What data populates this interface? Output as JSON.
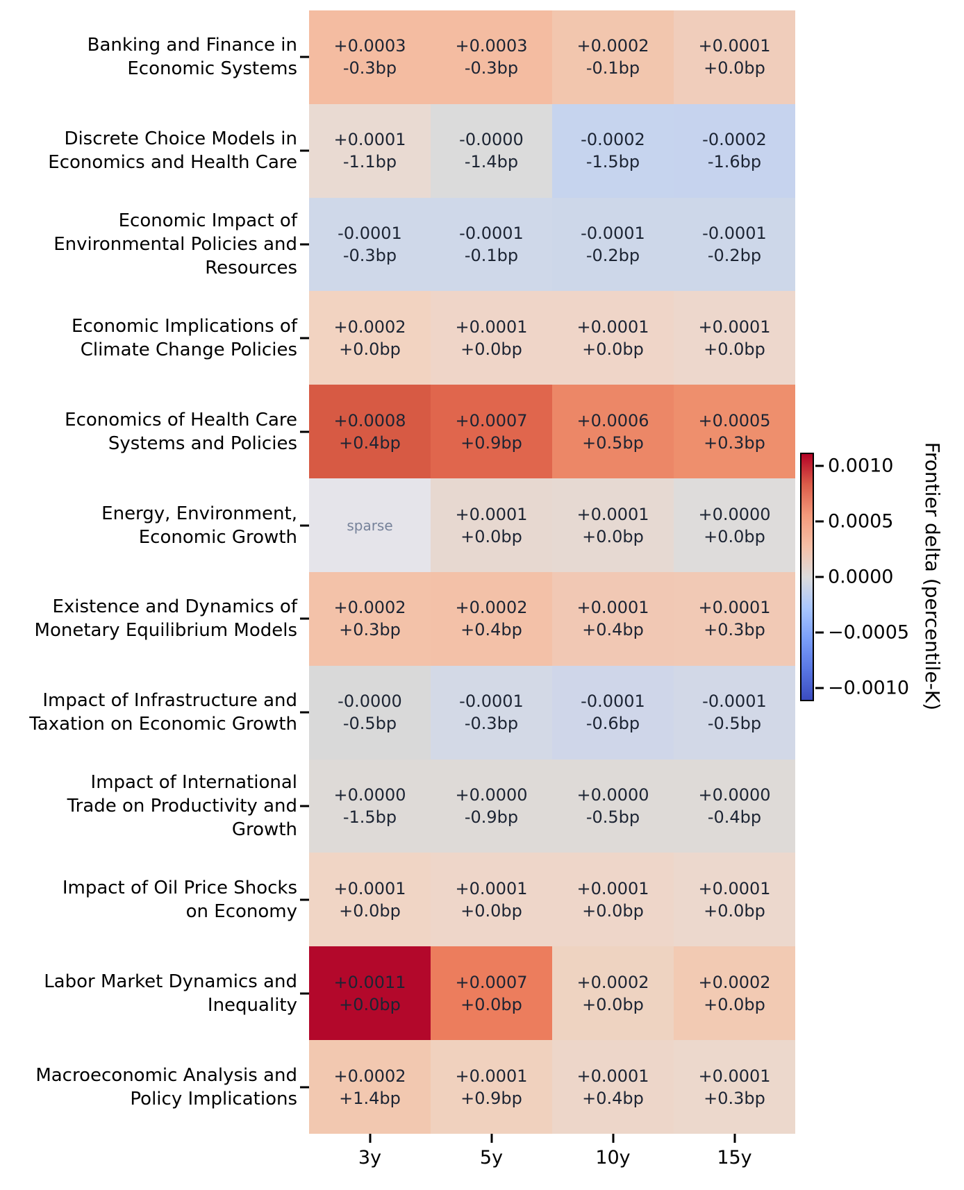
{
  "chart_data": {
    "type": "heatmap",
    "columns": [
      "3y",
      "5y",
      "10y",
      "15y"
    ],
    "sparse_label": "sparse",
    "cell_text_color": "#1c2433",
    "sparse_text_color": "#76829a",
    "rows": [
      {
        "label_lines": [
          "Banking and Finance in",
          "Economic Systems"
        ],
        "cells": [
          {
            "delta": "+0.0003",
            "bp": "-0.3bp",
            "color": "#f4bca1"
          },
          {
            "delta": "+0.0003",
            "bp": "-0.3bp",
            "color": "#f4bca1"
          },
          {
            "delta": "+0.0002",
            "bp": "-0.1bp",
            "color": "#f2c6ae"
          },
          {
            "delta": "+0.0001",
            "bp": "+0.0bp",
            "color": "#f0cdbb"
          }
        ]
      },
      {
        "label_lines": [
          "Discrete Choice Models in",
          "Economics and Health Care"
        ],
        "cells": [
          {
            "delta": "+0.0001",
            "bp": "-1.1bp",
            "color": "#e9dad2"
          },
          {
            "delta": "-0.0000",
            "bp": "-1.4bp",
            "color": "#dbdbdb"
          },
          {
            "delta": "-0.0002",
            "bp": "-1.5bp",
            "color": "#c6d4ee"
          },
          {
            "delta": "-0.0002",
            "bp": "-1.6bp",
            "color": "#c6d3ee"
          }
        ]
      },
      {
        "label_lines": [
          "Economic Impact of",
          "Environmental Policies and",
          "Resources"
        ],
        "cells": [
          {
            "delta": "-0.0001",
            "bp": "-0.3bp",
            "color": "#cfd8e9"
          },
          {
            "delta": "-0.0001",
            "bp": "-0.1bp",
            "color": "#cfd8e9"
          },
          {
            "delta": "-0.0001",
            "bp": "-0.2bp",
            "color": "#cdd7e9"
          },
          {
            "delta": "-0.0001",
            "bp": "-0.2bp",
            "color": "#cdd7e9"
          }
        ]
      },
      {
        "label_lines": [
          "Economic Implications of",
          "Climate Change Policies"
        ],
        "cells": [
          {
            "delta": "+0.0002",
            "bp": "+0.0bp",
            "color": "#f2d3c1"
          },
          {
            "delta": "+0.0001",
            "bp": "+0.0bp",
            "color": "#efd5c8"
          },
          {
            "delta": "+0.0001",
            "bp": "+0.0bp",
            "color": "#efd5c8"
          },
          {
            "delta": "+0.0001",
            "bp": "+0.0bp",
            "color": "#edd7cc"
          }
        ]
      },
      {
        "label_lines": [
          "Economics of Health Care",
          "Systems and Policies"
        ],
        "cells": [
          {
            "delta": "+0.0008",
            "bp": "+0.4bp",
            "color": "#d75a44"
          },
          {
            "delta": "+0.0007",
            "bp": "+0.9bp",
            "color": "#e0664d"
          },
          {
            "delta": "+0.0006",
            "bp": "+0.5bp",
            "color": "#ec8767"
          },
          {
            "delta": "+0.0005",
            "bp": "+0.3bp",
            "color": "#ee8f6d"
          }
        ]
      },
      {
        "label_lines": [
          "Energy, Environment,",
          "Economic Growth"
        ],
        "cells": [
          {
            "sparse": true,
            "color": "#e5e4ea"
          },
          {
            "delta": "+0.0001",
            "bp": "+0.0bp",
            "color": "#e7d8d0"
          },
          {
            "delta": "+0.0001",
            "bp": "+0.0bp",
            "color": "#e6d9d2"
          },
          {
            "delta": "+0.0000",
            "bp": "+0.0bp",
            "color": "#dedcdb"
          }
        ]
      },
      {
        "label_lines": [
          "Existence and Dynamics of",
          "Monetary Equilibrium Models"
        ],
        "cells": [
          {
            "delta": "+0.0002",
            "bp": "+0.3bp",
            "color": "#f3c2a9"
          },
          {
            "delta": "+0.0002",
            "bp": "+0.4bp",
            "color": "#f3c1a8"
          },
          {
            "delta": "+0.0001",
            "bp": "+0.4bp",
            "color": "#f1c8b4"
          },
          {
            "delta": "+0.0001",
            "bp": "+0.3bp",
            "color": "#f1c9b5"
          }
        ]
      },
      {
        "label_lines": [
          "Impact of Infrastructure and",
          "Taxation on Economic Growth"
        ],
        "cells": [
          {
            "delta": "-0.0000",
            "bp": "-0.5bp",
            "color": "#d9d9d9"
          },
          {
            "delta": "-0.0001",
            "bp": "-0.3bp",
            "color": "#d3d9e6"
          },
          {
            "delta": "-0.0001",
            "bp": "-0.6bp",
            "color": "#cfd6e9"
          },
          {
            "delta": "-0.0001",
            "bp": "-0.5bp",
            "color": "#d2d8e7"
          }
        ]
      },
      {
        "label_lines": [
          "Impact of International",
          "Trade on Productivity and",
          "Growth"
        ],
        "cells": [
          {
            "delta": "+0.0000",
            "bp": "-1.5bp",
            "color": "#dedad7"
          },
          {
            "delta": "+0.0000",
            "bp": "-0.9bp",
            "color": "#dedad7"
          },
          {
            "delta": "+0.0000",
            "bp": "-0.5bp",
            "color": "#dedad7"
          },
          {
            "delta": "+0.0000",
            "bp": "-0.4bp",
            "color": "#dedad7"
          }
        ]
      },
      {
        "label_lines": [
          "Impact of Oil Price Shocks",
          "on Economy"
        ],
        "cells": [
          {
            "delta": "+0.0001",
            "bp": "+0.0bp",
            "color": "#f0d5c5"
          },
          {
            "delta": "+0.0001",
            "bp": "+0.0bp",
            "color": "#eed6c9"
          },
          {
            "delta": "+0.0001",
            "bp": "+0.0bp",
            "color": "#eed6c9"
          },
          {
            "delta": "+0.0001",
            "bp": "+0.0bp",
            "color": "#ecd8cd"
          }
        ]
      },
      {
        "label_lines": [
          "Labor Market Dynamics and",
          "Inequality"
        ],
        "cells": [
          {
            "delta": "+0.0011",
            "bp": "+0.0bp",
            "color": "#b3082b"
          },
          {
            "delta": "+0.0007",
            "bp": "+0.0bp",
            "color": "#ec7d5d"
          },
          {
            "delta": "+0.0002",
            "bp": "+0.0bp",
            "color": "#eed3c1"
          },
          {
            "delta": "+0.0002",
            "bp": "+0.0bp",
            "color": "#f2cab3"
          }
        ]
      },
      {
        "label_lines": [
          "Macroeconomic Analysis and",
          "Policy Implications"
        ],
        "cells": [
          {
            "delta": "+0.0002",
            "bp": "+1.4bp",
            "color": "#f2c8b0"
          },
          {
            "delta": "+0.0001",
            "bp": "+0.9bp",
            "color": "#f0d1be"
          },
          {
            "delta": "+0.0001",
            "bp": "+0.4bp",
            "color": "#edd6c9"
          },
          {
            "delta": "+0.0001",
            "bp": "+0.3bp",
            "color": "#ecd8cc"
          }
        ]
      }
    ],
    "colorbar": {
      "title": "Frontier delta (percentile-K)",
      "ticks": [
        "0.0010",
        "0.0005",
        "0.0000",
        "−0.0005",
        "−0.0010"
      ],
      "range": [
        -0.0011,
        0.0011
      ],
      "gradient_top_to_bottom": [
        "#b40426",
        "#dc5d4a",
        "#f49a7b",
        "#f6bfa6",
        "#dddcdc",
        "#aac7fd",
        "#7b9ff9",
        "#5977e3",
        "#3b4cc0"
      ]
    }
  }
}
